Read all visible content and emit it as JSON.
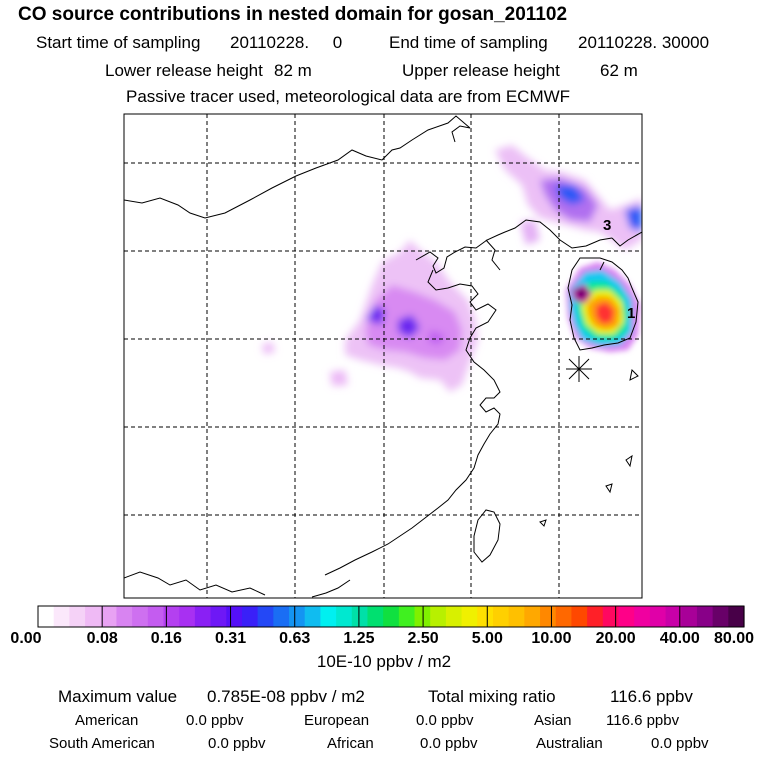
{
  "header": {
    "title": "CO  source contributions in nested domain for gosan_201102",
    "sampling_start_label": "Start time of sampling",
    "sampling_start_value": "20110228.     0",
    "sampling_end_label": "End time of sampling",
    "sampling_end_value": "20110228. 30000",
    "lower_release_label": "Lower release height",
    "lower_release_value": "82 m",
    "upper_release_label": "Upper release height",
    "upper_release_value": "62 m",
    "tracer_note": "Passive tracer used, meteorological data are from ECMWF"
  },
  "map": {
    "region": "East Asia nested domain",
    "grid": true,
    "receptor_marker": "asterisk",
    "contour_labels": [
      "3",
      "1"
    ]
  },
  "colorbar": {
    "tick_labels": [
      "0.00",
      "0.08",
      "0.16",
      "0.31",
      "0.63",
      "1.25",
      "2.50",
      "5.00",
      "10.00",
      "20.00",
      "40.00",
      "80.00"
    ],
    "colors": [
      "#ffffff",
      "#fbe8fb",
      "#f5d2f7",
      "#efbaf5",
      "#e8a2f3",
      "#d884f1",
      "#ce70f0",
      "#c45cf0",
      "#b440f0",
      "#a830f2",
      "#8a20f4",
      "#6e18f6",
      "#5510f8",
      "#3a20f8",
      "#2448f6",
      "#1a6ef4",
      "#1494f2",
      "#10bcf0",
      "#00f0f0",
      "#00e8d0",
      "#00e0a8",
      "#00e070",
      "#10e040",
      "#40f020",
      "#80f000",
      "#b8f000",
      "#d8f000",
      "#f0f000",
      "#ffe000",
      "#ffd000",
      "#ffc000",
      "#ffa800",
      "#ff8800",
      "#ff6800",
      "#ff4800",
      "#ff2028",
      "#ff0860",
      "#ff0088",
      "#f000a0",
      "#e000a8",
      "#c800a8",
      "#a80098",
      "#880088",
      "#680068",
      "#480048"
    ],
    "unit": "10E-10 ppbv / m2"
  },
  "stats": {
    "max_label": "Maximum value",
    "max_value": "0.785E-08 ppbv / m2",
    "total_label": "Total mixing ratio",
    "total_value": "116.6 ppbv",
    "sources": [
      {
        "name": "American",
        "value": "0.0 ppbv"
      },
      {
        "name": "European",
        "value": "0.0 ppbv"
      },
      {
        "name": "Asian",
        "value": "116.6 ppbv"
      },
      {
        "name": "South American",
        "value": "0.0 ppbv"
      },
      {
        "name": "African",
        "value": "0.0 ppbv"
      },
      {
        "name": "Australian",
        "value": "0.0 ppbv"
      }
    ]
  }
}
